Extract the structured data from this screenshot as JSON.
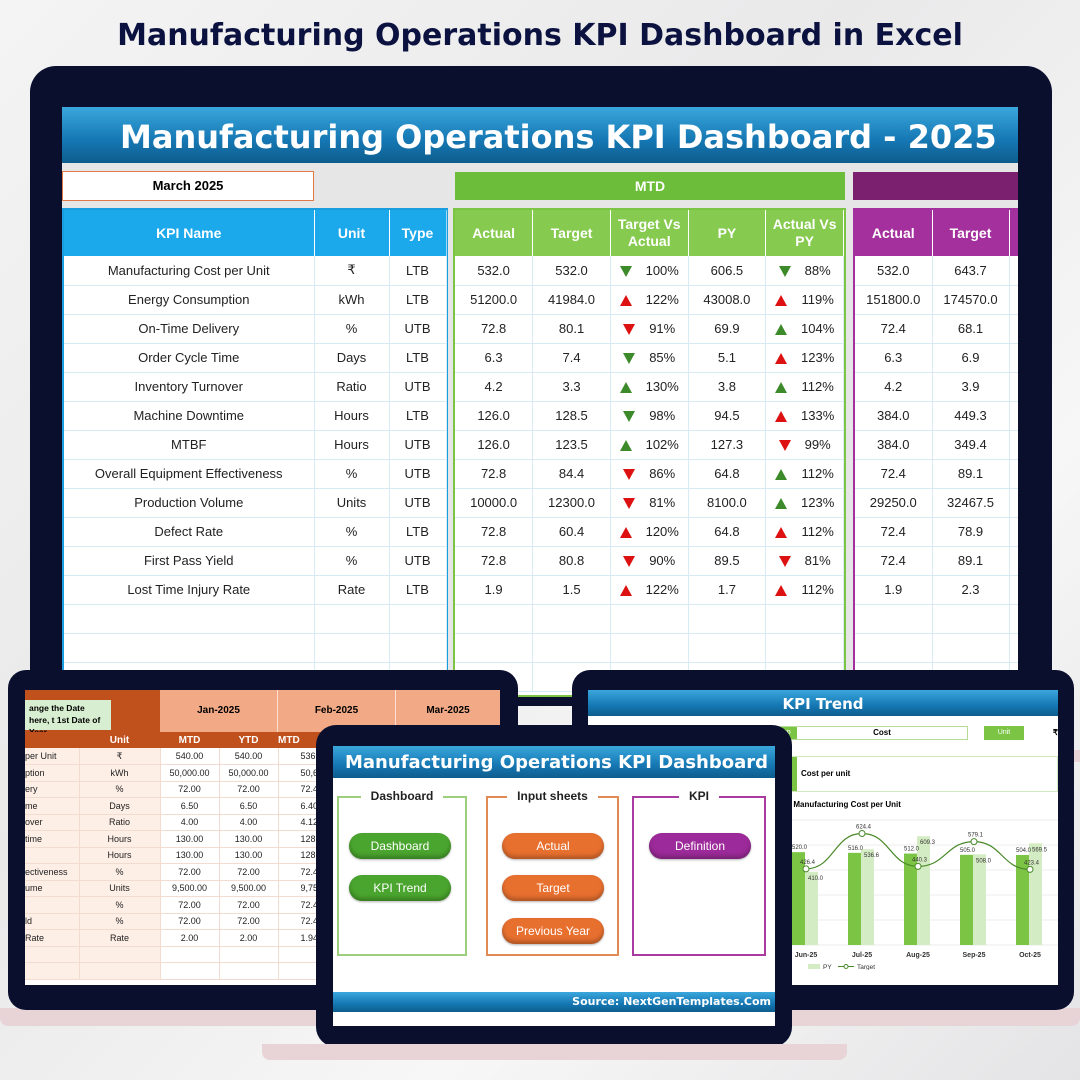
{
  "page_title": "Manufacturing Operations KPI Dashboard in Excel",
  "main": {
    "banner": "Manufacturing Operations KPI Dashboard - 2025",
    "month": "March 2025",
    "mtd_label": "MTD",
    "headers": {
      "kpi": "KPI Name",
      "unit": "Unit",
      "type": "Type",
      "actual": "Actual",
      "target": "Target",
      "tva": "Target Vs Actual",
      "py": "PY",
      "avpy": "Actual Vs PY"
    },
    "colors": {
      "blue": "#1aa3e8",
      "green": "#7cc544",
      "purple": "#a4309e",
      "up_bad": "#d11111",
      "good": "#3d8a2a"
    },
    "rows": [
      {
        "kpi": "Manufacturing Cost per Unit",
        "unit": "₹",
        "type": "LTB",
        "actual": "532.0",
        "target": "532.0",
        "tva_dir": "down",
        "tva_good": true,
        "tva": "100%",
        "py": "606.5",
        "avpy_dir": "down",
        "avpy_good": true,
        "avpy": "88%",
        "ytd_actual": "532.0",
        "ytd_target": "643.7"
      },
      {
        "kpi": "Energy Consumption",
        "unit": "kWh",
        "type": "LTB",
        "actual": "51200.0",
        "target": "41984.0",
        "tva_dir": "up",
        "tva_good": false,
        "tva": "122%",
        "py": "43008.0",
        "avpy_dir": "up",
        "avpy_good": false,
        "avpy": "119%",
        "ytd_actual": "151800.0",
        "ytd_target": "174570.0"
      },
      {
        "kpi": "On-Time Delivery",
        "unit": "%",
        "type": "UTB",
        "actual": "72.8",
        "target": "80.1",
        "tva_dir": "down",
        "tva_good": false,
        "tva": "91%",
        "py": "69.9",
        "avpy_dir": "up",
        "avpy_good": true,
        "avpy": "104%",
        "ytd_actual": "72.4",
        "ytd_target": "68.1"
      },
      {
        "kpi": "Order Cycle Time",
        "unit": "Days",
        "type": "LTB",
        "actual": "6.3",
        "target": "7.4",
        "tva_dir": "down",
        "tva_good": true,
        "tva": "85%",
        "py": "5.1",
        "avpy_dir": "up",
        "avpy_good": false,
        "avpy": "123%",
        "ytd_actual": "6.3",
        "ytd_target": "6.9"
      },
      {
        "kpi": "Inventory Turnover",
        "unit": "Ratio",
        "type": "UTB",
        "actual": "4.2",
        "target": "3.3",
        "tva_dir": "up",
        "tva_good": true,
        "tva": "130%",
        "py": "3.8",
        "avpy_dir": "up",
        "avpy_good": true,
        "avpy": "112%",
        "ytd_actual": "4.2",
        "ytd_target": "3.9"
      },
      {
        "kpi": "Machine Downtime",
        "unit": "Hours",
        "type": "LTB",
        "actual": "126.0",
        "target": "128.5",
        "tva_dir": "down",
        "tva_good": true,
        "tva": "98%",
        "py": "94.5",
        "avpy_dir": "up",
        "avpy_good": false,
        "avpy": "133%",
        "ytd_actual": "384.0",
        "ytd_target": "449.3"
      },
      {
        "kpi": "MTBF",
        "unit": "Hours",
        "type": "UTB",
        "actual": "126.0",
        "target": "123.5",
        "tva_dir": "up",
        "tva_good": true,
        "tva": "102%",
        "py": "127.3",
        "avpy_dir": "down",
        "avpy_good": false,
        "avpy": "99%",
        "ytd_actual": "384.0",
        "ytd_target": "349.4"
      },
      {
        "kpi": "Overall Equipment Effectiveness",
        "unit": "%",
        "type": "UTB",
        "actual": "72.8",
        "target": "84.4",
        "tva_dir": "down",
        "tva_good": false,
        "tva": "86%",
        "py": "64.8",
        "avpy_dir": "up",
        "avpy_good": true,
        "avpy": "112%",
        "ytd_actual": "72.4",
        "ytd_target": "89.1"
      },
      {
        "kpi": "Production Volume",
        "unit": "Units",
        "type": "UTB",
        "actual": "10000.0",
        "target": "12300.0",
        "tva_dir": "down",
        "tva_good": false,
        "tva": "81%",
        "py": "8100.0",
        "avpy_dir": "up",
        "avpy_good": true,
        "avpy": "123%",
        "ytd_actual": "29250.0",
        "ytd_target": "32467.5"
      },
      {
        "kpi": "Defect Rate",
        "unit": "%",
        "type": "LTB",
        "actual": "72.8",
        "target": "60.4",
        "tva_dir": "up",
        "tva_good": false,
        "tva": "120%",
        "py": "64.8",
        "avpy_dir": "up",
        "avpy_good": false,
        "avpy": "112%",
        "ytd_actual": "72.4",
        "ytd_target": "78.9"
      },
      {
        "kpi": "First Pass Yield",
        "unit": "%",
        "type": "UTB",
        "actual": "72.8",
        "target": "80.8",
        "tva_dir": "down",
        "tva_good": false,
        "tva": "90%",
        "py": "89.5",
        "avpy_dir": "down",
        "avpy_good": false,
        "avpy": "81%",
        "ytd_actual": "72.4",
        "ytd_target": "89.1"
      },
      {
        "kpi": "Lost Time Injury Rate",
        "unit": "Rate",
        "type": "LTB",
        "actual": "1.9",
        "target": "1.5",
        "tva_dir": "up",
        "tva_good": false,
        "tva": "122%",
        "py": "1.7",
        "avpy_dir": "up",
        "avpy_good": false,
        "avpy": "112%",
        "ytd_actual": "1.9",
        "ytd_target": "2.3"
      }
    ]
  },
  "input_sheet": {
    "note": "ange the Date here, t 1st Date of Year",
    "months": [
      "Jan-2025",
      "Feb-2025",
      "Mar-2025"
    ],
    "headers": [
      "Unit",
      "MTD",
      "YTD",
      "MTD"
    ],
    "rows": [
      [
        "per Unit",
        "₹",
        "540.00",
        "540.00",
        "536.0"
      ],
      [
        "ption",
        "kWh",
        "50,000.00",
        "50,000.00",
        "50,600."
      ],
      [
        "ery",
        "%",
        "72.00",
        "72.00",
        "72.40"
      ],
      [
        "me",
        "Days",
        "6.50",
        "6.50",
        "6.40"
      ],
      [
        "over",
        "Ratio",
        "4.00",
        "4.00",
        "4.12"
      ],
      [
        "time",
        "Hours",
        "130.00",
        "130.00",
        "128.0"
      ],
      [
        "",
        "Hours",
        "130.00",
        "130.00",
        "128.0"
      ],
      [
        "ectiveness",
        "%",
        "72.00",
        "72.00",
        "72.40"
      ],
      [
        "ume",
        "Units",
        "9,500.00",
        "9,500.00",
        "9,750."
      ],
      [
        "",
        "%",
        "72.00",
        "72.00",
        "72.40"
      ],
      [
        "ld",
        "%",
        "72.00",
        "72.00",
        "72.40"
      ],
      [
        "Rate",
        "Rate",
        "2.00",
        "2.00",
        "1.94"
      ]
    ]
  },
  "trend": {
    "banner": "KPI Trend",
    "group_label": "oup",
    "group_value": "Cost",
    "unit_label": "Unit",
    "unit_value": "₹",
    "def_label": "on",
    "def_value": "Cost per unit",
    "chart_title": "r Manufacturing Cost per Unit",
    "legend": [
      "ctual",
      "PY",
      "Target"
    ]
  },
  "chart_data": {
    "type": "bar",
    "title": "r Manufacturing Cost per Unit",
    "categories": [
      "Jun-25",
      "Jul-25",
      "Aug-25",
      "Sep-25",
      "Oct-25"
    ],
    "series": [
      {
        "name": "ctual",
        "values": [
          520.0,
          516.0,
          512.0,
          505.0,
          504.0
        ]
      },
      {
        "name": "PY",
        "values": [
          410.0,
          536.6,
          609.3,
          508.0,
          569.5
        ]
      },
      {
        "name": "Target",
        "type": "line",
        "values": [
          426.4,
          624.4,
          440.3,
          579.1,
          423.4
        ]
      }
    ],
    "ylim": [
      0,
      700
    ]
  },
  "menu": {
    "banner": "Manufacturing Operations KPI Dashboard",
    "groups": {
      "dashboard": "Dashboard",
      "input": "Input sheets",
      "kpi": "KPI"
    },
    "buttons": {
      "dashboard": "Dashboard",
      "trend": "KPI Trend",
      "actual": "Actual",
      "target": "Target",
      "py": "Previous Year",
      "definition": "Definition"
    },
    "source": "Source: NextGenTemplates.Com"
  }
}
